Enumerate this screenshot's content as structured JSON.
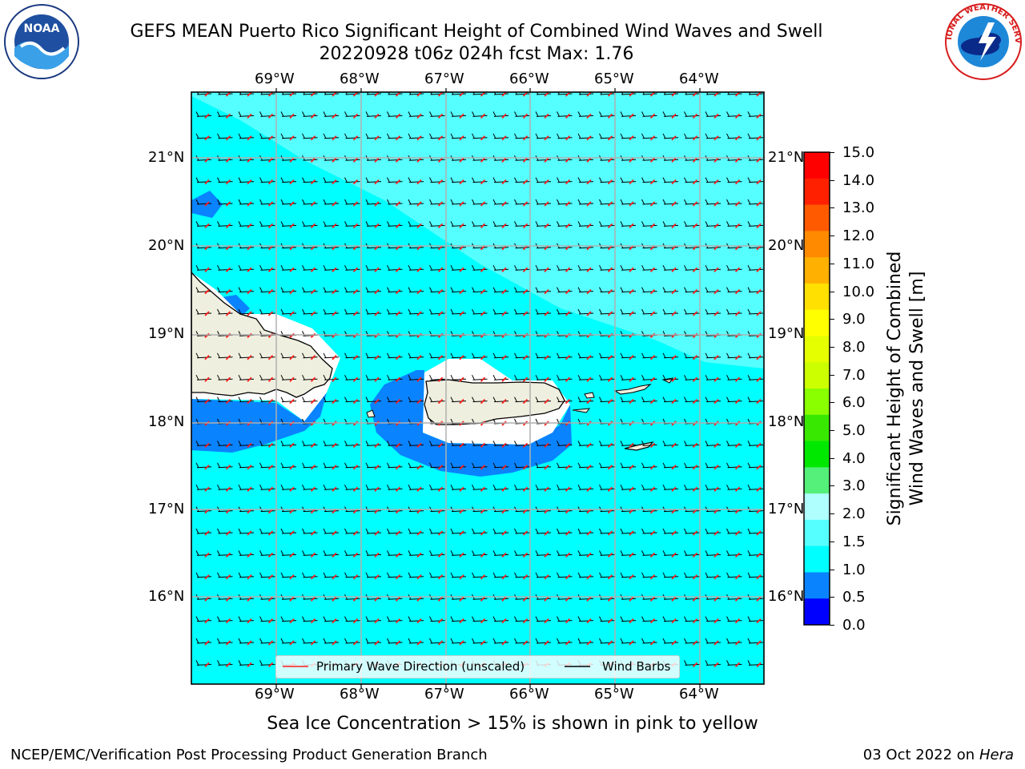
{
  "title": {
    "line1": "GEFS MEAN Puerto Rico Significant Height of Combined Wind Waves and Swell",
    "line2": "20220928 t06z 024h fcst   Max: 1.76"
  },
  "logos": {
    "left": {
      "name": "noaa-logo",
      "text": "NOAA",
      "ring_text": "NATIONAL OCEANIC AND ATMOSPHERIC ADMINISTRATION · U.S. DEPARTMENT OF COMMERCE"
    },
    "right": {
      "name": "nws-logo",
      "ring_text": "NATIONAL WEATHER SERVICE"
    }
  },
  "map": {
    "lon_labels": [
      "69°W",
      "68°W",
      "67°W",
      "66°W",
      "65°W",
      "64°W"
    ],
    "lat_labels": [
      "21°N",
      "20°N",
      "19°N",
      "18°N",
      "17°N",
      "16°N"
    ],
    "colors": {
      "ocean_main": "#00ffff",
      "ocean_light": "#55ffff",
      "ocean_dark": "#0a83ff",
      "land": "#efefdf",
      "no_data": "#ffffff",
      "wave_arrow": "#ff1a1a",
      "wind_barb": "#000000",
      "grid": "#b0b0b0"
    }
  },
  "legend": {
    "wave_dir": "Primary Wave Direction (unscaled)",
    "wind_barbs": "Wind Barbs"
  },
  "colorbar": {
    "label_line1": "Significant Height of Combined",
    "label_line2": "Wind Waves and Swell [m]",
    "ticks": [
      "15.0",
      "14.0",
      "13.0",
      "12.0",
      "11.0",
      "10.0",
      "9.0",
      "8.0",
      "7.0",
      "6.0",
      "5.0",
      "4.0",
      "3.0",
      "2.0",
      "1.5",
      "1.0",
      "0.5",
      "0.0"
    ],
    "colors_top_to_bottom": [
      "#ff0000",
      "#ff2000",
      "#ff5a00",
      "#ff8a00",
      "#ffb000",
      "#ffe000",
      "#ffff00",
      "#e6ff00",
      "#ccff00",
      "#8aff00",
      "#38e800",
      "#00e800",
      "#55f07a",
      "#b0ffff",
      "#55ffff",
      "#00ffff",
      "#0a83ff",
      "#0000ff"
    ]
  },
  "notes": {
    "sea_ice": "Sea Ice Concentration > 15% is shown in pink to yellow"
  },
  "footer": {
    "left": "NCEP/EMC/Verification Post Processing Product Generation Branch",
    "right_date": "03 Oct 2022 on ",
    "right_host": "Hera"
  }
}
